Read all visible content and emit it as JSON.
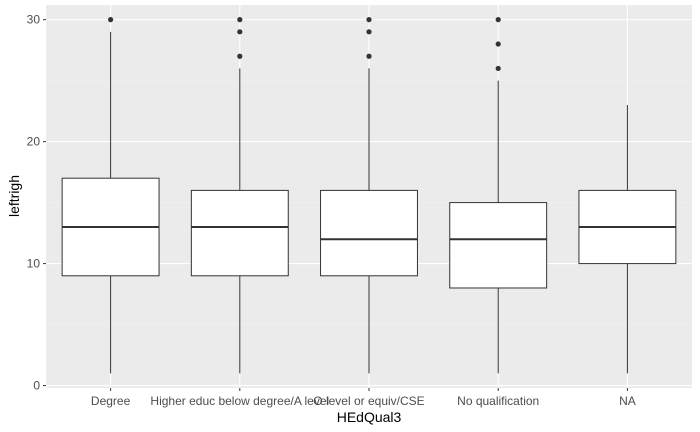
{
  "chart_data": {
    "type": "boxplot",
    "title": "",
    "xlabel": "HEdQual3",
    "ylabel": "leftrigh",
    "ylim": [
      -0.2,
      31.2
    ],
    "yticks": [
      0,
      10,
      20,
      30
    ],
    "grid": true,
    "legend": "none",
    "categories": [
      "Degree",
      "Higher educ below degree/A level",
      "O level or equiv/CSE",
      "No qualification",
      "NA"
    ],
    "boxes": [
      {
        "category": "Degree",
        "whisker_low": 1,
        "q1": 9,
        "median": 13,
        "q3": 17,
        "whisker_high": 29,
        "outliers": [
          30
        ]
      },
      {
        "category": "Higher educ below degree/A level",
        "whisker_low": 1,
        "q1": 9,
        "median": 13,
        "q3": 16,
        "whisker_high": 26,
        "outliers": [
          27,
          29,
          30
        ]
      },
      {
        "category": "O level or equiv/CSE",
        "whisker_low": 1,
        "q1": 9,
        "median": 12,
        "q3": 16,
        "whisker_high": 26,
        "outliers": [
          27,
          29,
          30
        ]
      },
      {
        "category": "No qualification",
        "whisker_low": 1,
        "q1": 8,
        "median": 12,
        "q3": 15,
        "whisker_high": 25,
        "outliers": [
          26,
          28,
          30
        ]
      },
      {
        "category": "NA",
        "whisker_low": 1,
        "q1": 10,
        "median": 13,
        "q3": 16,
        "whisker_high": 23,
        "outliers": []
      }
    ],
    "colors": {
      "panel": "#ebebeb",
      "grid_major": "#ffffff",
      "grid_minor": "#f2f2f2",
      "box_fill": "#ffffff",
      "line": "#333333",
      "tick_text": "#4d4d4d",
      "tick_mark": "#333333"
    }
  }
}
